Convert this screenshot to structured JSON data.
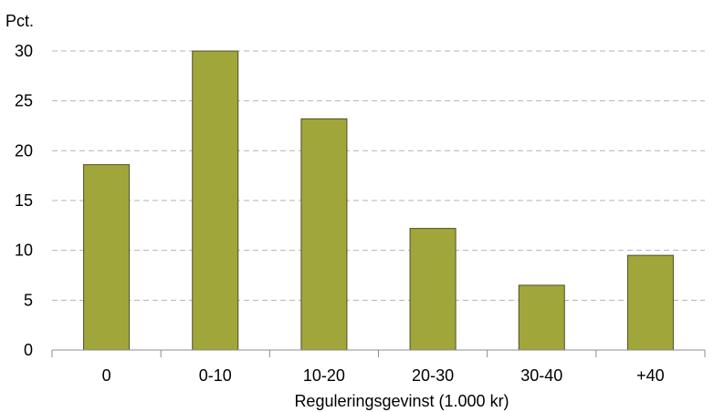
{
  "chart_data": {
    "type": "bar",
    "unit_label": "Pct.",
    "xlabel": "Reguleringsgevinst (1.000 kr)",
    "ylabel": "",
    "categories": [
      "0",
      "0-10",
      "10-20",
      "20-30",
      "30-40",
      "+40"
    ],
    "values": [
      18.6,
      30.0,
      23.2,
      12.2,
      6.5,
      9.5
    ],
    "ylim": [
      0,
      30
    ],
    "yticks": [
      "0",
      "5",
      "10",
      "15",
      "20",
      "25",
      "30"
    ],
    "grid": true,
    "legend": "none",
    "colors": {
      "bar": "#a0a63a",
      "bar_border": "#4d4d2a",
      "grid": "#b3b3b3",
      "axis": "#8c8c8c"
    }
  }
}
